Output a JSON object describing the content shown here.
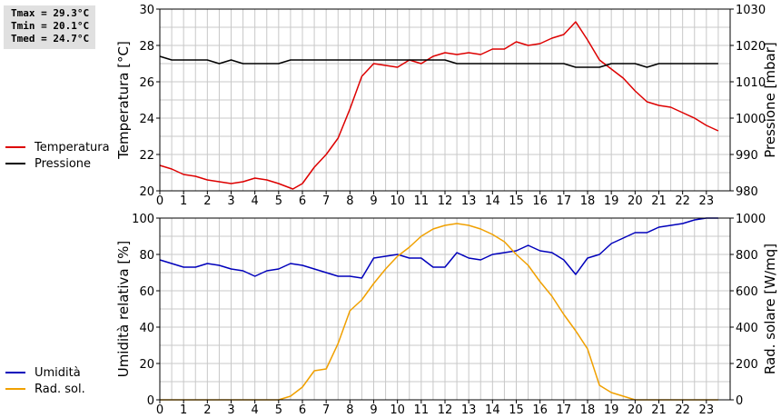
{
  "stats": {
    "tmax": "Tmax = 29.3°C",
    "tmin": "Tmin = 20.1°C",
    "tmed": "Tmed = 24.7°C"
  },
  "colors": {
    "temperature": "#dd0000",
    "pressure": "#000000",
    "humidity": "#0000bb",
    "radiation": "#f0a000",
    "grid": "#c8c8c8"
  },
  "chart_data": [
    {
      "type": "line",
      "title": "",
      "xlabel": "",
      "xlim": [
        0,
        24
      ],
      "x_ticks": [
        0,
        1,
        2,
        3,
        4,
        5,
        6,
        7,
        8,
        9,
        10,
        11,
        12,
        13,
        14,
        15,
        16,
        17,
        18,
        19,
        20,
        21,
        22,
        23
      ],
      "left_axis": {
        "label": "Temperatura [°C]",
        "range": [
          20,
          30
        ],
        "ticks": [
          20,
          22,
          24,
          26,
          28,
          30
        ]
      },
      "right_axis": {
        "label": "Pressione [mbar]",
        "range": [
          980,
          1030
        ],
        "ticks": [
          980,
          990,
          1000,
          1010,
          1020,
          1030
        ]
      },
      "grid": true,
      "legend_position": "left",
      "series": [
        {
          "name": "Temperatura",
          "axis": "left",
          "points": [
            [
              0,
              21.4
            ],
            [
              0.5,
              21.2
            ],
            [
              1,
              20.9
            ],
            [
              1.5,
              20.8
            ],
            [
              2,
              20.6
            ],
            [
              2.5,
              20.5
            ],
            [
              3,
              20.4
            ],
            [
              3.5,
              20.5
            ],
            [
              4,
              20.7
            ],
            [
              4.5,
              20.6
            ],
            [
              5,
              20.4
            ],
            [
              5.6,
              20.1
            ],
            [
              6,
              20.4
            ],
            [
              6.5,
              21.3
            ],
            [
              7,
              22.0
            ],
            [
              7.5,
              22.9
            ],
            [
              8,
              24.5
            ],
            [
              8.5,
              26.3
            ],
            [
              9,
              27.0
            ],
            [
              9.5,
              26.9
            ],
            [
              10,
              26.8
            ],
            [
              10.5,
              27.2
            ],
            [
              11,
              27.0
            ],
            [
              11.5,
              27.4
            ],
            [
              12,
              27.6
            ],
            [
              12.5,
              27.5
            ],
            [
              13,
              27.6
            ],
            [
              13.5,
              27.5
            ],
            [
              14,
              27.8
            ],
            [
              14.5,
              27.8
            ],
            [
              15,
              28.2
            ],
            [
              15.5,
              28.0
            ],
            [
              16,
              28.1
            ],
            [
              16.5,
              28.4
            ],
            [
              17,
              28.6
            ],
            [
              17.5,
              29.3
            ],
            [
              18,
              28.3
            ],
            [
              18.5,
              27.2
            ],
            [
              19,
              26.7
            ],
            [
              19.5,
              26.2
            ],
            [
              20,
              25.5
            ],
            [
              20.5,
              24.9
            ],
            [
              21,
              24.7
            ],
            [
              21.5,
              24.6
            ],
            [
              22,
              24.3
            ],
            [
              22.5,
              24.0
            ],
            [
              23,
              23.6
            ],
            [
              23.5,
              23.3
            ]
          ]
        },
        {
          "name": "Pressione",
          "axis": "right",
          "points": [
            [
              0,
              1017
            ],
            [
              0.5,
              1016
            ],
            [
              1,
              1016
            ],
            [
              2,
              1016
            ],
            [
              2.5,
              1015
            ],
            [
              3,
              1016
            ],
            [
              3.5,
              1015
            ],
            [
              5,
              1015
            ],
            [
              5.5,
              1016
            ],
            [
              11.5,
              1016
            ],
            [
              12,
              1016
            ],
            [
              12.5,
              1015
            ],
            [
              17,
              1015
            ],
            [
              17.5,
              1014
            ],
            [
              18.5,
              1014
            ],
            [
              19,
              1015
            ],
            [
              20,
              1015
            ],
            [
              20.5,
              1014
            ],
            [
              21,
              1015
            ],
            [
              23.5,
              1015
            ]
          ]
        }
      ]
    },
    {
      "type": "line",
      "title": "",
      "xlabel": "",
      "xlim": [
        0,
        24
      ],
      "x_ticks": [
        0,
        1,
        2,
        3,
        4,
        5,
        6,
        7,
        8,
        9,
        10,
        11,
        12,
        13,
        14,
        15,
        16,
        17,
        18,
        19,
        20,
        21,
        22,
        23
      ],
      "left_axis": {
        "label": "Umidità relativa [%]",
        "range": [
          0,
          100
        ],
        "ticks": [
          0,
          20,
          40,
          60,
          80,
          100
        ]
      },
      "right_axis": {
        "label": "Rad. solare [W/mq]",
        "range": [
          0,
          1000
        ],
        "ticks": [
          0,
          200,
          400,
          600,
          800,
          1000
        ]
      },
      "grid": true,
      "legend_position": "left",
      "series": [
        {
          "name": "Umidità",
          "axis": "left",
          "points": [
            [
              0,
              77
            ],
            [
              0.5,
              75
            ],
            [
              1,
              73
            ],
            [
              1.5,
              73
            ],
            [
              2,
              75
            ],
            [
              2.5,
              74
            ],
            [
              3,
              72
            ],
            [
              3.5,
              71
            ],
            [
              4,
              68
            ],
            [
              4.5,
              71
            ],
            [
              5,
              72
            ],
            [
              5.5,
              75
            ],
            [
              6,
              74
            ],
            [
              6.5,
              72
            ],
            [
              7,
              70
            ],
            [
              7.5,
              68
            ],
            [
              8,
              68
            ],
            [
              8.5,
              67
            ],
            [
              9,
              78
            ],
            [
              9.5,
              79
            ],
            [
              10,
              80
            ],
            [
              10.5,
              78
            ],
            [
              11,
              78
            ],
            [
              11.5,
              73
            ],
            [
              12,
              73
            ],
            [
              12.5,
              81
            ],
            [
              13,
              78
            ],
            [
              13.5,
              77
            ],
            [
              14,
              80
            ],
            [
              14.5,
              81
            ],
            [
              15,
              82
            ],
            [
              15.5,
              85
            ],
            [
              16,
              82
            ],
            [
              16.5,
              81
            ],
            [
              17,
              77
            ],
            [
              17.5,
              69
            ],
            [
              18,
              78
            ],
            [
              18.5,
              80
            ],
            [
              19,
              86
            ],
            [
              19.5,
              89
            ],
            [
              20,
              92
            ],
            [
              20.5,
              92
            ],
            [
              21,
              95
            ],
            [
              21.5,
              96
            ],
            [
              22,
              97
            ],
            [
              22.5,
              99
            ],
            [
              23,
              100
            ],
            [
              23.5,
              100
            ]
          ]
        },
        {
          "name": "Rad. sol.",
          "axis": "right",
          "points": [
            [
              0,
              0
            ],
            [
              5,
              0
            ],
            [
              5.5,
              20
            ],
            [
              6,
              70
            ],
            [
              6.5,
              160
            ],
            [
              7,
              170
            ],
            [
              7.5,
              310
            ],
            [
              8,
              490
            ],
            [
              8.5,
              550
            ],
            [
              9,
              640
            ],
            [
              9.5,
              720
            ],
            [
              10,
              790
            ],
            [
              10.5,
              840
            ],
            [
              11,
              900
            ],
            [
              11.5,
              940
            ],
            [
              12,
              960
            ],
            [
              12.5,
              970
            ],
            [
              13,
              960
            ],
            [
              13.5,
              940
            ],
            [
              14,
              910
            ],
            [
              14.5,
              870
            ],
            [
              15,
              800
            ],
            [
              15.5,
              740
            ],
            [
              16,
              650
            ],
            [
              16.5,
              570
            ],
            [
              17,
              470
            ],
            [
              17.5,
              380
            ],
            [
              18,
              280
            ],
            [
              18.5,
              80
            ],
            [
              19,
              40
            ],
            [
              19.5,
              20
            ],
            [
              20,
              0
            ],
            [
              23.5,
              0
            ]
          ]
        }
      ]
    }
  ]
}
